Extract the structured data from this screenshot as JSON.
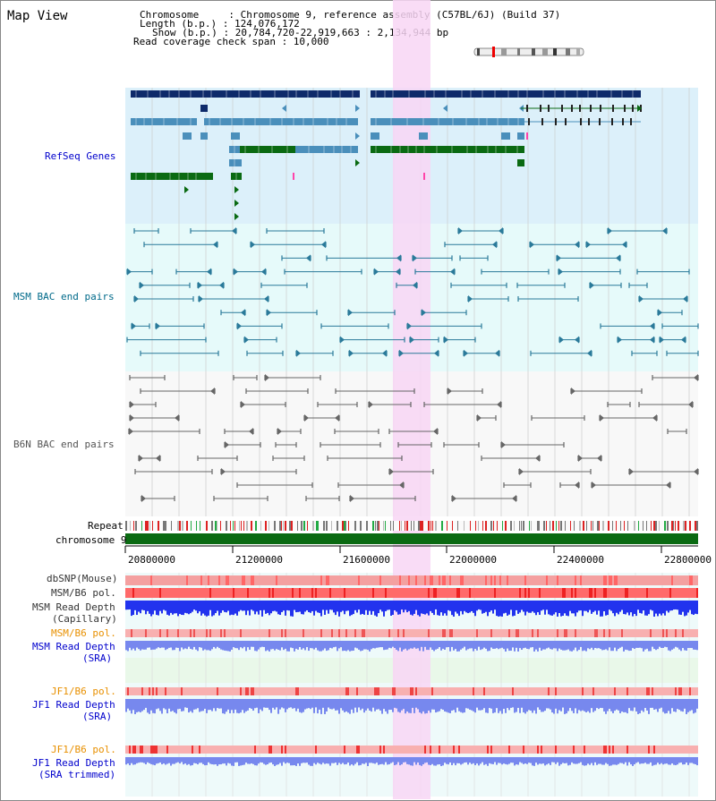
{
  "page": {
    "title": "Map View",
    "info": {
      "chromosome": "Chromosome     : Chromosome 9, reference assembly (C57BL/6J) (Build 37)",
      "length": "Length (b.p.) : 124,076,172",
      "show": "Show (b.p.) : 20,784,720-22,919,663 : 2,134,944 bp",
      "coverage": "Read coverage check span : 10,000"
    }
  },
  "tracks": {
    "refseq": "RefSeq Genes",
    "msm_bac": "MSM BAC end pairs",
    "b6n_bac": "B6N BAC end pairs",
    "repeat": "Repeat",
    "chromosome": "chromosome 9",
    "dbsnp": "dbSNP(Mouse)",
    "msm_pol1": "MSM/B6 pol.",
    "msm_depth_cap_1": "MSM Read Depth",
    "msm_depth_cap_2": "(Capillary)",
    "msm_pol2": "MSM/B6 pol.",
    "msm_depth_sra_1": "MSM Read Depth",
    "msm_depth_sra_2": "(SRA)",
    "jf1_pol1": "JF1/B6 pol.",
    "jf1_depth_sra_1": "JF1 Read Depth",
    "jf1_depth_sra_2": "(SRA)",
    "jf1_pol2": "JF1/B6 pol.",
    "jf1_depth_trim_1": "JF1 Read Depth",
    "jf1_depth_trim_2": "(SRA trimmed)"
  },
  "ruler": {
    "ticks": [
      "20800000",
      "21200000",
      "21600000",
      "22000000",
      "22400000",
      "22800000"
    ]
  },
  "colors": {
    "refseq_bg": "#dcf0fa",
    "msm_bg": "#e6fafa",
    "b6n_bg": "#f8f8f8",
    "highlight": "#f8d6f4",
    "gene_dark": "#0e2a6a",
    "gene_mid": "#4a8fbb",
    "gene_green": "#0a6a12",
    "msm_line": "#2a7a9a",
    "b6n_line": "#666666",
    "chromosome_bar": "#0a6a12",
    "snp_red": "#ee4444",
    "depth_blue": "#2233ee",
    "depth_light": "#7788ee",
    "label_blue": "#0000cc",
    "label_teal": "#006a8a",
    "label_orange": "#e89000"
  }
}
